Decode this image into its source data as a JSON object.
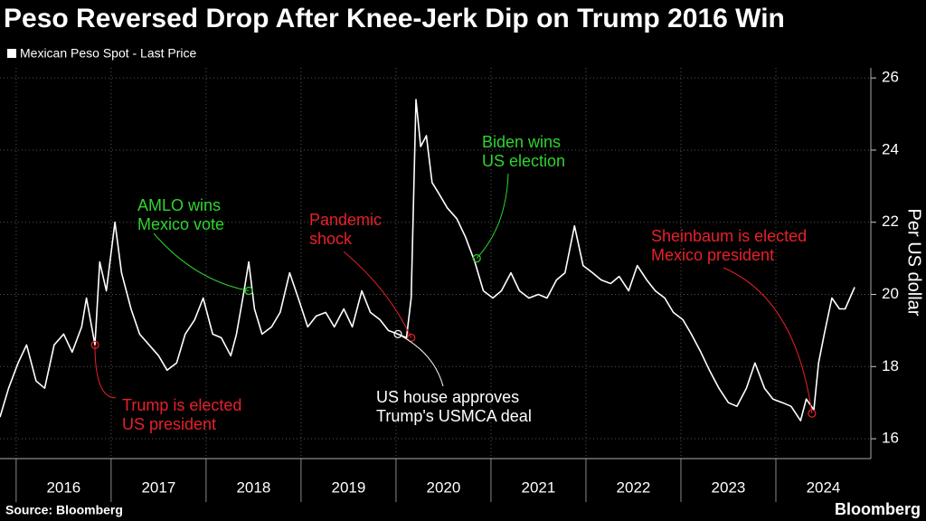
{
  "chart_data": {
    "type": "line",
    "title": "Peso Reversed Drop After Knee-Jerk Dip on Trump 2016 Win",
    "y_label": "Per US dollar",
    "source": "Source: Bloomberg",
    "brand": "Bloomberg",
    "grid": true,
    "xlim": [
      2015.83,
      2025
    ],
    "xticks": [
      {
        "value": 2016,
        "label": "2016"
      },
      {
        "value": 2017,
        "label": "2017"
      },
      {
        "value": 2018,
        "label": "2018"
      },
      {
        "value": 2019,
        "label": "2019"
      },
      {
        "value": 2020,
        "label": "2020"
      },
      {
        "value": 2021,
        "label": "2021"
      },
      {
        "value": 2022,
        "label": "2022"
      },
      {
        "value": 2023,
        "label": "2023"
      },
      {
        "value": 2024,
        "label": "2024"
      }
    ],
    "ylim": [
      15.45,
      26.28
    ],
    "yticks": [
      16,
      18,
      20,
      22,
      24,
      26
    ],
    "x": [
      2015.83,
      2015.92,
      2016.02,
      2016.11,
      2016.21,
      2016.3,
      2016.4,
      2016.5,
      2016.59,
      2016.69,
      2016.74,
      2016.83,
      2016.88,
      2016.95,
      2017.04,
      2017.11,
      2017.21,
      2017.3,
      2017.4,
      2017.5,
      2017.59,
      2017.69,
      2017.78,
      2017.88,
      2017.97,
      2018.07,
      2018.16,
      2018.26,
      2018.32,
      2018.4,
      2018.45,
      2018.51,
      2018.59,
      2018.69,
      2018.78,
      2018.88,
      2018.97,
      2019.07,
      2019.16,
      2019.26,
      2019.35,
      2019.45,
      2019.54,
      2019.64,
      2019.73,
      2019.83,
      2019.92,
      2020.02,
      2020.11,
      2020.16,
      2020.21,
      2020.26,
      2020.32,
      2020.38,
      2020.45,
      2020.54,
      2020.64,
      2020.73,
      2020.83,
      2020.92,
      2021.02,
      2021.11,
      2021.21,
      2021.3,
      2021.4,
      2021.5,
      2021.59,
      2021.69,
      2021.78,
      2021.88,
      2021.97,
      2022.07,
      2022.16,
      2022.26,
      2022.35,
      2022.45,
      2022.54,
      2022.64,
      2022.73,
      2022.83,
      2022.92,
      2023.02,
      2023.11,
      2023.21,
      2023.3,
      2023.4,
      2023.5,
      2023.59,
      2023.69,
      2023.78,
      2023.88,
      2023.97,
      2024.07,
      2024.16,
      2024.26,
      2024.32,
      2024.4,
      2024.45,
      2024.51,
      2024.59,
      2024.67,
      2024.73,
      2024.83
    ],
    "series": [
      {
        "name": "Mexican Peso Spot - Last Price",
        "color": "#ffffff",
        "values": [
          16.6,
          17.4,
          18.1,
          18.6,
          17.6,
          17.4,
          18.6,
          18.9,
          18.4,
          19.1,
          19.9,
          18.6,
          20.9,
          20.1,
          22.0,
          20.6,
          19.6,
          18.9,
          18.6,
          18.3,
          17.9,
          18.1,
          18.9,
          19.3,
          19.9,
          18.9,
          18.8,
          18.3,
          18.9,
          20.1,
          20.9,
          19.6,
          18.9,
          19.1,
          19.5,
          20.6,
          19.9,
          19.1,
          19.4,
          19.5,
          19.1,
          19.6,
          19.1,
          20.1,
          19.5,
          19.3,
          19.0,
          18.9,
          18.8,
          19.9,
          25.4,
          24.1,
          24.4,
          23.1,
          22.8,
          22.4,
          22.1,
          21.6,
          20.9,
          20.1,
          19.9,
          20.1,
          20.6,
          20.1,
          19.9,
          20.0,
          19.9,
          20.4,
          20.6,
          21.9,
          20.8,
          20.6,
          20.4,
          20.3,
          20.5,
          20.1,
          20.8,
          20.4,
          20.1,
          19.9,
          19.5,
          19.3,
          18.9,
          18.4,
          17.9,
          17.4,
          17.0,
          16.9,
          17.4,
          18.1,
          17.4,
          17.1,
          17.0,
          16.9,
          16.5,
          17.1,
          16.8,
          18.1,
          18.9,
          19.9,
          19.6,
          19.6,
          20.2
        ]
      }
    ],
    "annotations": [
      {
        "lines": [
          "Trump is elected",
          "US president"
        ],
        "color": "#e8202a",
        "x": 2016.83,
        "y": 18.6
      },
      {
        "lines": [
          "AMLO wins",
          "Mexico vote"
        ],
        "color": "#2ed42e",
        "x": 2018.45,
        "y": 20.1
      },
      {
        "lines": [
          "Pandemic",
          "shock"
        ],
        "color": "#e8202a",
        "x": 2020.16,
        "y": 18.8
      },
      {
        "lines": [
          "US house approves",
          "Trump's USMCA deal"
        ],
        "color": "#ffffff",
        "x": 2020.02,
        "y": 18.9
      },
      {
        "lines": [
          "Biden wins",
          "US election"
        ],
        "color": "#2ed42e",
        "x": 2020.85,
        "y": 21.0
      },
      {
        "lines": [
          "Sheinbaum is elected",
          "Mexico president"
        ],
        "color": "#e8202a",
        "x": 2024.38,
        "y": 16.7
      }
    ]
  }
}
